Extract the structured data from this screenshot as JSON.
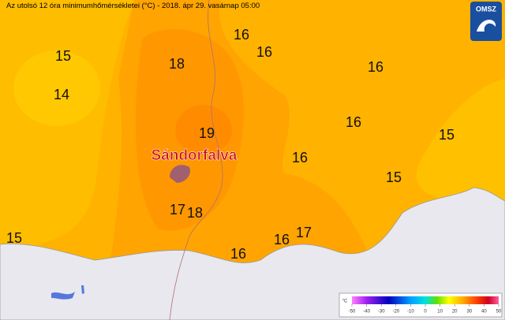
{
  "header": {
    "title": "Az utolsó 12 óra minimumhőmérsékletei (°C) - 2018. ápr 29. vasárnap 05:00",
    "logo": "OMSZ"
  },
  "map": {
    "town": "Sándorfalva",
    "labels": [
      15,
      14,
      18,
      16,
      16,
      16,
      19,
      16,
      16,
      15,
      15,
      17,
      18,
      15,
      16,
      16,
      17
    ]
  },
  "colorbar": {
    "unit": "°C",
    "ticks": [
      -50,
      -40,
      -30,
      -20,
      -10,
      0,
      10,
      20,
      30,
      40,
      50
    ]
  }
}
